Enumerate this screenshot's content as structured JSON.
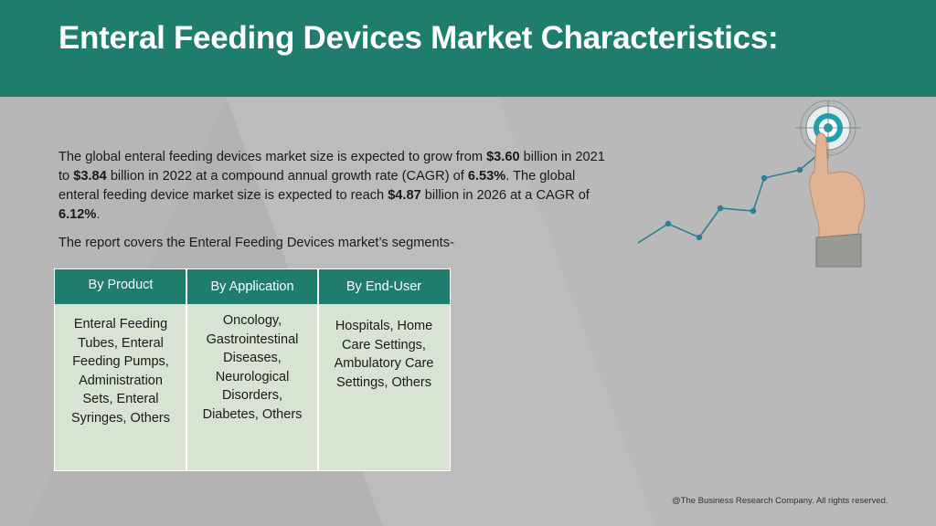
{
  "header": {
    "title": "Enteral Feeding Devices Market Characteristics:"
  },
  "intro": {
    "t1": "The global enteral feeding devices market size is expected to grow from ",
    "v1": "$3.60",
    "t2": " billion in 2021 to ",
    "v2": "$3.84",
    "t3": " billion in 2022 at a compound annual growth rate (CAGR) of ",
    "v3": "6.53%",
    "t4": ". The global enteral feeding device market size is expected to reach ",
    "v4": "$4.87",
    "t5": " billion in 2026 at a CAGR of ",
    "v5": "6.12%",
    "t6": "."
  },
  "segments_intro": "The report covers the Enteral Feeding Devices market’s segments-",
  "segments": {
    "columns": [
      {
        "header": "By Product",
        "body": "Enteral Feeding Tubes, Enteral Feeding Pumps, Administration Sets, Enteral Syringes, Others"
      },
      {
        "header": "By Application",
        "body": "Oncology, Gastrointestinal Diseases, Neurological Disorders, Diabetes, Others"
      },
      {
        "header": "By End-User",
        "body": "Hospitals, Home Care Settings, Ambulatory Care Settings, Others"
      }
    ]
  },
  "footer": "@The Business Research Company. All rights reserved.",
  "colors": {
    "accent": "#1e7d6c",
    "table_fill": "#d8e3d4",
    "background": "#b7b7b7"
  },
  "icons": [
    "growth-line-icon",
    "target-icon",
    "pointing-hand-icon"
  ]
}
